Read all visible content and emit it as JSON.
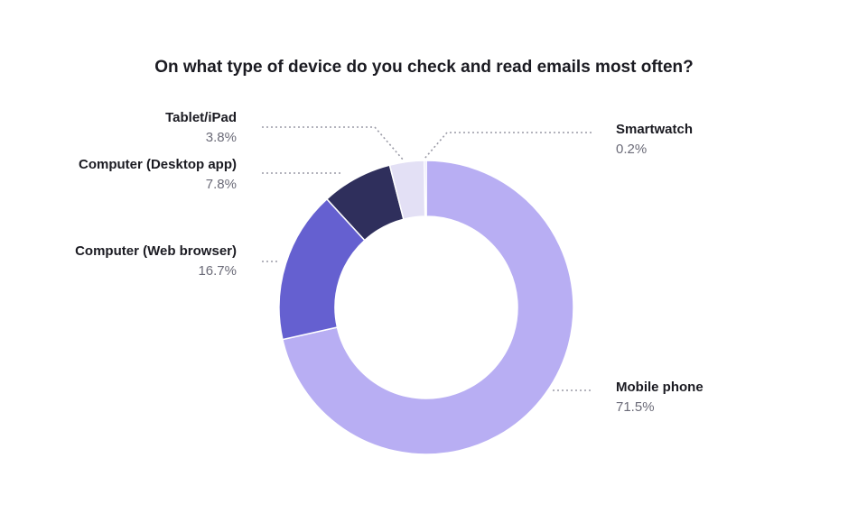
{
  "chart_data": {
    "type": "pie",
    "title": "On what type of device do you check and read emails most often?",
    "hole": true,
    "slices": [
      {
        "label": "Mobile phone",
        "value": 71.5,
        "display": "71.5%",
        "color": "#b8aef3"
      },
      {
        "label": "Computer (Web browser)",
        "value": 16.7,
        "display": "16.7%",
        "color": "#6560d0"
      },
      {
        "label": "Computer (Desktop app)",
        "value": 7.8,
        "display": "7.8%",
        "color": "#2f2f5c"
      },
      {
        "label": "Tablet/iPad",
        "value": 3.8,
        "display": "3.8%",
        "color": "#e3e0f5"
      },
      {
        "label": "Smartwatch",
        "value": 0.2,
        "display": "0.2%",
        "color": "#c9c2f6"
      }
    ],
    "leader_color": "#9a9aa6"
  }
}
